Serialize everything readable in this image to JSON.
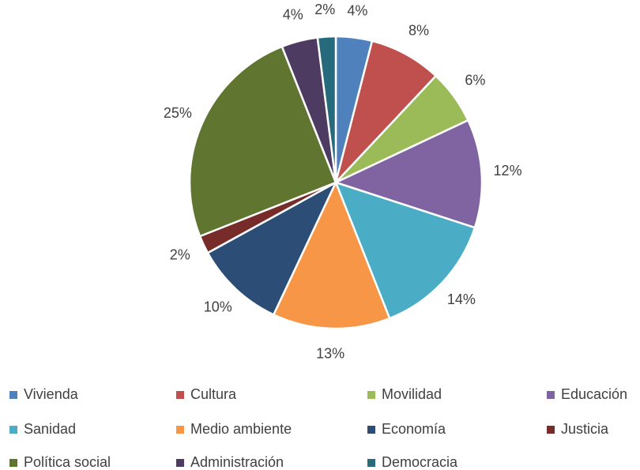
{
  "chart_data": {
    "type": "pie",
    "categories": [
      "Vivienda",
      "Cultura",
      "Movilidad",
      "Educación",
      "Sanidad",
      "Medio ambiente",
      "Economía",
      "Justicia",
      "Política social",
      "Administración",
      "Democracia"
    ],
    "values": [
      4,
      8,
      6,
      12,
      14,
      13,
      10,
      2,
      25,
      4,
      2
    ],
    "value_labels": [
      "4%",
      "8%",
      "6%",
      "12%",
      "14%",
      "13%",
      "10%",
      "2%",
      "25%",
      "4%",
      "2%"
    ],
    "colors": [
      "#4f81bd",
      "#c0504d",
      "#9bbb59",
      "#8064a2",
      "#4bacc6",
      "#f79646",
      "#2c4d75",
      "#772c2a",
      "#5f7530",
      "#4d3b62",
      "#276a7c"
    ],
    "legend": "bottom"
  }
}
